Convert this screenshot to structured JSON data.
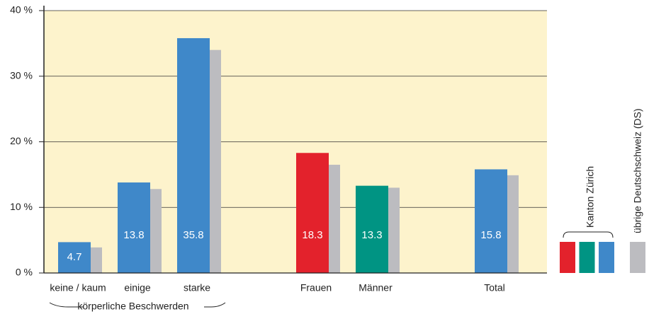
{
  "chart_data": {
    "type": "bar",
    "categories": [
      "keine / kaum",
      "einige",
      "starke",
      null,
      "Frauen",
      "Männer",
      null,
      "Total"
    ],
    "series": [
      {
        "name": "Kanton Zürich",
        "color": "#3f88c9",
        "colors": [
          "#3f88c9",
          "#3f88c9",
          "#3f88c9",
          null,
          "#e3222c",
          "#009483",
          null,
          "#3f88c9"
        ],
        "legend_colors": [
          "#e3222c",
          "#009483",
          "#3f88c9"
        ],
        "values": [
          4.7,
          13.8,
          35.8,
          null,
          18.3,
          13.3,
          null,
          15.8
        ]
      },
      {
        "name": "übrige Deutschschweiz (DS)",
        "color": "#bcbcc0",
        "values": [
          3.9,
          12.8,
          34.0,
          null,
          16.5,
          13.0,
          null,
          14.9
        ]
      }
    ],
    "annotation": "körperliche Beschwerden",
    "ylim": [
      0,
      40
    ],
    "yticks": [
      {
        "value": 0,
        "label": "0 %"
      },
      {
        "value": 10,
        "label": "10 %"
      },
      {
        "value": 20,
        "label": "20 %"
      },
      {
        "value": 30,
        "label": "30 %"
      },
      {
        "value": 40,
        "label": "40 %"
      }
    ],
    "grid": true,
    "background": "#fdf3cc"
  }
}
